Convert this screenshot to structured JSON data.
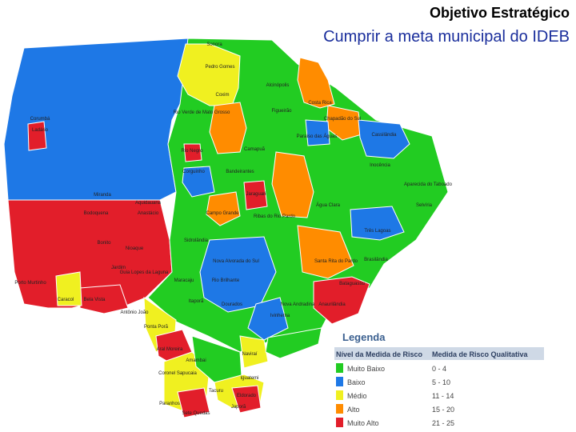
{
  "header": {
    "title": "Objetivo Estratégico",
    "subtitle": "Cumprir a meta municipal do IDEB"
  },
  "legend": {
    "title": "Legenda",
    "columns": [
      "Nível da Medida de Risco",
      "Medida de Risco Qualitativa"
    ],
    "rows": [
      {
        "level": "Muito Baixo",
        "range": "0 - 4",
        "color": "#22cc22"
      },
      {
        "level": "Baixo",
        "range": "5 - 10",
        "color": "#1e78e6"
      },
      {
        "level": "Médio",
        "range": "11 - 14",
        "color": "#f0f020"
      },
      {
        "level": "Alto",
        "range": "15 - 20",
        "color": "#ff8c00"
      },
      {
        "level": "Muito Alto",
        "range": "21 - 25",
        "color": "#e21e2a"
      }
    ]
  },
  "places": [
    "Sonora",
    "Pedro Gomes",
    "Coxim",
    "Alcinópolis",
    "Rio Verde de Mato Grosso",
    "Figueirão",
    "Costa Rica",
    "Chapadão do Sul",
    "Cassilândia",
    "Corumbá",
    "Ladário",
    "Camapuã",
    "Paraíso das Águas",
    "Inocência",
    "Aparecida do Taboado",
    "Selvíria",
    "Bandeirantes",
    "Água Clara",
    "Três Lagoas",
    "Campo Grande",
    "Ribas do Rio Pardo",
    "Miranda",
    "Aquidauana",
    "Anastácio",
    "Bodoquena",
    "Sidrolândia",
    "Jaraguari",
    "Corguinho",
    "Rio Negro",
    "Bonito",
    "Nioaque",
    "Jardim",
    "Guia Lopes da Laguna",
    "Porto Murtinho",
    "Caracol",
    "Bela Vista",
    "Antônio João",
    "Ponta Porã",
    "Maracaju",
    "Nova Alvorada do Sul",
    "Rio Brilhante",
    "Santa Rita do Pardo",
    "Brasilândia",
    "Bataguassu",
    "Anaurilândia",
    "Nova Andradina",
    "Dourados",
    "Itaporã",
    "Ivinhema",
    "Aral Moreira",
    "Amambai",
    "Coronel Sapucaia",
    "Paranhos",
    "Sete Quedas",
    "Tacuru",
    "Iguatemi",
    "Japorã",
    "Eldorado",
    "Naviraí"
  ]
}
